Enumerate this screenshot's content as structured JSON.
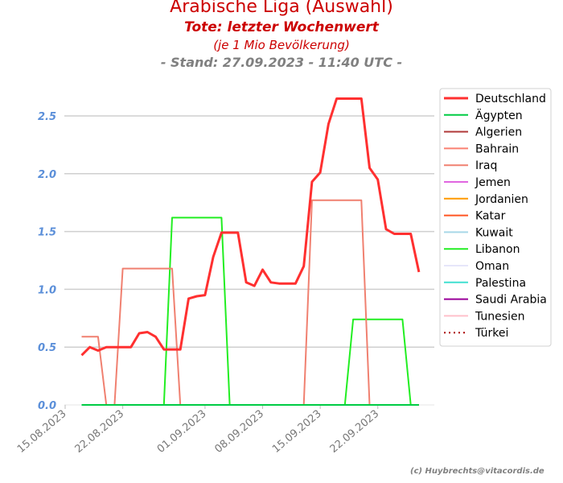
{
  "header": {
    "title": "Arabische Liga (Auswahl)",
    "subtitle": "Tote: letzter Wochenwert",
    "unit_note": "(je 1 Mio Bevölkerung)",
    "stand": "- Stand: 27.09.2023 - 11:40 UTC -"
  },
  "credit": "(c) Huybrechts@vitacordis.de",
  "chart_data": {
    "type": "line",
    "title": "Arabische Liga (Auswahl)",
    "subtitle": "Tote: letzter Wochenwert",
    "xlabel": "",
    "ylabel": "",
    "x_start": "2023-08-15",
    "x_ticks": [
      "15.08.2023",
      "22.08.2023",
      "01.09.2023",
      "08.09.2023",
      "15.09.2023",
      "22.09.2023"
    ],
    "ylim": [
      0,
      2.75
    ],
    "y_ticks": [
      "0.0",
      "0.5",
      "1.0",
      "1.5",
      "2.0",
      "2.5"
    ],
    "grid": "horizontal",
    "legend_position": "right",
    "tick_color": "#5b8fd9",
    "dates": [
      "17.08.2023",
      "18.08.2023",
      "19.08.2023",
      "20.08.2023",
      "21.08.2023",
      "22.08.2023",
      "23.08.2023",
      "24.08.2023",
      "25.08.2023",
      "26.08.2023",
      "27.08.2023",
      "28.08.2023",
      "29.08.2023",
      "30.08.2023",
      "31.08.2023",
      "01.09.2023",
      "02.09.2023",
      "03.09.2023",
      "04.09.2023",
      "05.09.2023",
      "06.09.2023",
      "07.09.2023",
      "08.09.2023",
      "09.09.2023",
      "10.09.2023",
      "11.09.2023",
      "12.09.2023",
      "13.09.2023",
      "14.09.2023",
      "15.09.2023",
      "16.09.2023",
      "17.09.2023",
      "18.09.2023",
      "19.09.2023",
      "20.09.2023",
      "21.09.2023",
      "22.09.2023",
      "23.09.2023",
      "24.09.2023",
      "25.09.2023",
      "26.09.2023",
      "27.09.2023"
    ],
    "series": [
      {
        "name": "Deutschland",
        "color": "#ff3030",
        "width": 3,
        "dash": "",
        "values": [
          0.43,
          0.5,
          0.47,
          0.5,
          0.5,
          0.5,
          0.5,
          0.62,
          0.63,
          0.59,
          0.48,
          0.48,
          0.48,
          0.92,
          0.94,
          0.95,
          1.28,
          1.49,
          1.49,
          1.49,
          1.06,
          1.03,
          1.17,
          1.06,
          1.05,
          1.05,
          1.05,
          1.2,
          1.93,
          2.01,
          2.43,
          2.65,
          2.65,
          2.65,
          2.65,
          2.05,
          1.95,
          1.52,
          1.48,
          1.48,
          1.48,
          1.15
        ]
      },
      {
        "name": "Ägypten",
        "color": "#00cc44",
        "width": 2,
        "dash": "",
        "values": [
          0,
          0,
          0,
          0,
          0,
          0,
          0,
          0,
          0,
          0,
          0,
          0,
          0,
          0,
          0,
          0,
          0,
          0,
          0,
          0,
          0,
          0,
          0,
          0,
          0,
          0,
          0,
          0,
          0,
          0,
          0,
          0,
          0,
          0,
          0,
          0,
          0,
          0,
          0,
          0,
          0,
          0
        ]
      },
      {
        "name": "Algerien",
        "color": "#b03a3a",
        "width": 2,
        "dash": "",
        "values": [
          0,
          0,
          0,
          0,
          0,
          0,
          0,
          0,
          0,
          0,
          0,
          0,
          0,
          0,
          0,
          0,
          0,
          0,
          0,
          0,
          0,
          0,
          0,
          0,
          0,
          0,
          0,
          0,
          0,
          0,
          0,
          0,
          0,
          0,
          0,
          0,
          0,
          0,
          0,
          0,
          0,
          0
        ]
      },
      {
        "name": "Bahrain",
        "color": "#fa8072",
        "width": 2,
        "dash": "",
        "values": [
          0,
          0,
          0,
          0,
          0,
          0,
          0,
          0,
          0,
          0,
          0,
          0,
          0,
          0,
          0,
          0,
          0,
          0,
          0,
          0,
          0,
          0,
          0,
          0,
          0,
          0,
          0,
          0,
          0,
          0,
          0,
          0,
          0,
          0,
          0,
          0,
          0,
          0,
          0,
          0,
          0,
          0
        ]
      },
      {
        "name": "Iraq",
        "color": "#f08070",
        "width": 2,
        "dash": "",
        "values": [
          0.59,
          0.59,
          0.59,
          0,
          0,
          1.18,
          1.18,
          1.18,
          1.18,
          1.18,
          1.18,
          1.18,
          0,
          0,
          0,
          0,
          0,
          0,
          0,
          0,
          0,
          0,
          0,
          0,
          0,
          0,
          0,
          0,
          1.77,
          1.77,
          1.77,
          1.77,
          1.77,
          1.77,
          1.77,
          0,
          0,
          0,
          0,
          0,
          0,
          0
        ]
      },
      {
        "name": "Jemen",
        "color": "#e066e0",
        "width": 2,
        "dash": "",
        "values": [
          0,
          0,
          0,
          0,
          0,
          0,
          0,
          0,
          0,
          0,
          0,
          0,
          0,
          0,
          0,
          0,
          0,
          0,
          0,
          0,
          0,
          0,
          0,
          0,
          0,
          0,
          0,
          0,
          0,
          0,
          0,
          0,
          0,
          0,
          0,
          0,
          0,
          0,
          0,
          0,
          0,
          0
        ]
      },
      {
        "name": "Jordanien",
        "color": "#ff9900",
        "width": 2,
        "dash": "",
        "values": [
          0,
          0,
          0,
          0,
          0,
          0,
          0,
          0,
          0,
          0,
          0,
          0,
          0,
          0,
          0,
          0,
          0,
          0,
          0,
          0,
          0,
          0,
          0,
          0,
          0,
          0,
          0,
          0,
          0,
          0,
          0,
          0,
          0,
          0,
          0,
          0,
          0,
          0,
          0,
          0,
          0,
          0
        ]
      },
      {
        "name": "Katar",
        "color": "#ff5522",
        "width": 2,
        "dash": "",
        "values": [
          0,
          0,
          0,
          0,
          0,
          0,
          0,
          0,
          0,
          0,
          0,
          0,
          0,
          0,
          0,
          0,
          0,
          0,
          0,
          0,
          0,
          0,
          0,
          0,
          0,
          0,
          0,
          0,
          0,
          0,
          0,
          0,
          0,
          0,
          0,
          0,
          0,
          0,
          0,
          0,
          0,
          0
        ]
      },
      {
        "name": "Kuwait",
        "color": "#a8d8e8",
        "width": 2,
        "dash": "",
        "values": [
          0,
          0,
          0,
          0,
          0,
          0,
          0,
          0,
          0,
          0,
          0,
          0,
          0,
          0,
          0,
          0,
          0,
          0,
          0,
          0,
          0,
          0,
          0,
          0,
          0,
          0,
          0,
          0,
          0,
          0,
          0,
          0,
          0,
          0,
          0,
          0,
          0,
          0,
          0,
          0,
          0,
          0
        ]
      },
      {
        "name": "Libanon",
        "color": "#22ee22",
        "width": 2,
        "dash": "",
        "values": [
          0,
          0,
          0,
          0,
          0,
          0,
          0,
          0,
          0,
          0,
          0,
          1.62,
          1.62,
          1.62,
          1.62,
          1.62,
          1.62,
          1.62,
          0,
          0,
          0,
          0,
          0,
          0,
          0,
          0,
          0,
          0,
          0,
          0,
          0,
          0,
          0,
          0.74,
          0.74,
          0.74,
          0.74,
          0.74,
          0.74,
          0.74,
          0,
          0
        ]
      },
      {
        "name": "Oman",
        "color": "#e6e6fa",
        "width": 2,
        "dash": "",
        "values": [
          0,
          0,
          0,
          0,
          0,
          0,
          0,
          0,
          0,
          0,
          0,
          0,
          0,
          0,
          0,
          0,
          0,
          0,
          0,
          0,
          0,
          0,
          0,
          0,
          0,
          0,
          0,
          0,
          0,
          0,
          0,
          0,
          0,
          0,
          0,
          0,
          0,
          0,
          0,
          0,
          0,
          0
        ]
      },
      {
        "name": "Palestina",
        "color": "#40e0d0",
        "width": 2,
        "dash": "",
        "values": [
          0,
          0,
          0,
          0,
          0,
          0,
          0,
          0,
          0,
          0,
          0,
          0,
          0,
          0,
          0,
          0,
          0,
          0,
          0,
          0,
          0,
          0,
          0,
          0,
          0,
          0,
          0,
          0,
          0,
          0,
          0,
          0,
          0,
          0,
          0,
          0,
          0,
          0,
          0,
          0,
          0,
          0
        ]
      },
      {
        "name": "Saudi Arabia",
        "color": "#990099",
        "width": 2,
        "dash": "",
        "values": [
          0,
          0,
          0,
          0,
          0,
          0,
          0,
          0,
          0,
          0,
          0,
          0,
          0,
          0,
          0,
          0,
          0,
          0,
          0,
          0,
          0,
          0,
          0,
          0,
          0,
          0,
          0,
          0,
          0,
          0,
          0,
          0,
          0,
          0,
          0,
          0,
          0,
          0,
          0,
          0,
          0,
          0
        ]
      },
      {
        "name": "Tunesien",
        "color": "#ffc0cb",
        "width": 2,
        "dash": "",
        "values": [
          0,
          0,
          0,
          0,
          0,
          0,
          0,
          0,
          0,
          0,
          0,
          0,
          0,
          0,
          0,
          0,
          0,
          0,
          0,
          0,
          0,
          0,
          0,
          0,
          0,
          0,
          0,
          0,
          0,
          0,
          0,
          0,
          0,
          0,
          0,
          0,
          0,
          0,
          0,
          0,
          0,
          0
        ]
      },
      {
        "name": "Türkei",
        "color": "#aa0000",
        "width": 2,
        "dash": "2,4",
        "values": [
          0,
          0,
          0,
          0,
          0,
          0,
          0,
          0,
          0,
          0,
          0,
          0,
          0,
          0,
          0,
          0,
          0,
          0,
          0,
          0,
          0,
          0,
          0,
          0,
          0,
          0,
          0,
          0,
          0,
          0,
          0,
          0,
          0,
          0,
          0,
          0,
          0,
          0,
          0,
          0,
          0,
          0
        ]
      }
    ]
  }
}
